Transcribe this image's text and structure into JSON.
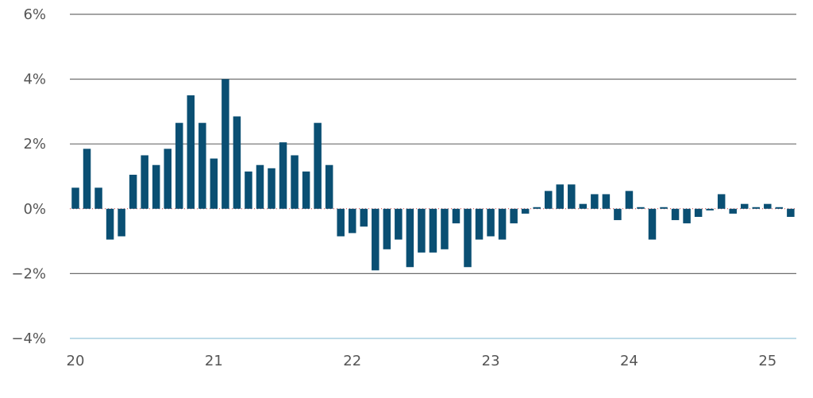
{
  "chart_data": {
    "type": "bar",
    "title": "",
    "xlabel": "",
    "ylabel": "",
    "ylim": [
      -4,
      6
    ],
    "y_ticks": [
      6,
      4,
      2,
      0,
      -2,
      -4
    ],
    "y_tick_labels": [
      "6%",
      "4%",
      "2%",
      "0%",
      "−2%",
      "−4%"
    ],
    "x_ticks": [
      0,
      12,
      24,
      36,
      48,
      60
    ],
    "x_tick_labels": [
      "20",
      "21",
      "22",
      "23",
      "24",
      "25"
    ],
    "grid": true,
    "bar_color": "#0a4f73",
    "values": [
      0.65,
      1.85,
      0.65,
      -0.95,
      -0.85,
      1.05,
      1.65,
      1.35,
      1.85,
      2.65,
      3.5,
      2.65,
      1.55,
      4.0,
      2.85,
      1.15,
      1.35,
      1.25,
      2.05,
      1.65,
      1.15,
      2.65,
      1.35,
      -0.85,
      -0.75,
      -0.55,
      -1.9,
      -1.25,
      -0.95,
      -1.8,
      -1.35,
      -1.35,
      -1.25,
      -0.45,
      -1.8,
      -0.95,
      -0.85,
      -0.95,
      -0.45,
      -0.15,
      0.05,
      0.55,
      0.75,
      0.75,
      0.15,
      0.45,
      0.45,
      -0.35,
      0.55,
      0.05,
      -0.95,
      0.05,
      -0.35,
      -0.45,
      -0.25,
      -0.05,
      0.45,
      -0.15,
      0.15,
      0.05,
      0.15,
      0.05,
      -0.25
    ]
  }
}
